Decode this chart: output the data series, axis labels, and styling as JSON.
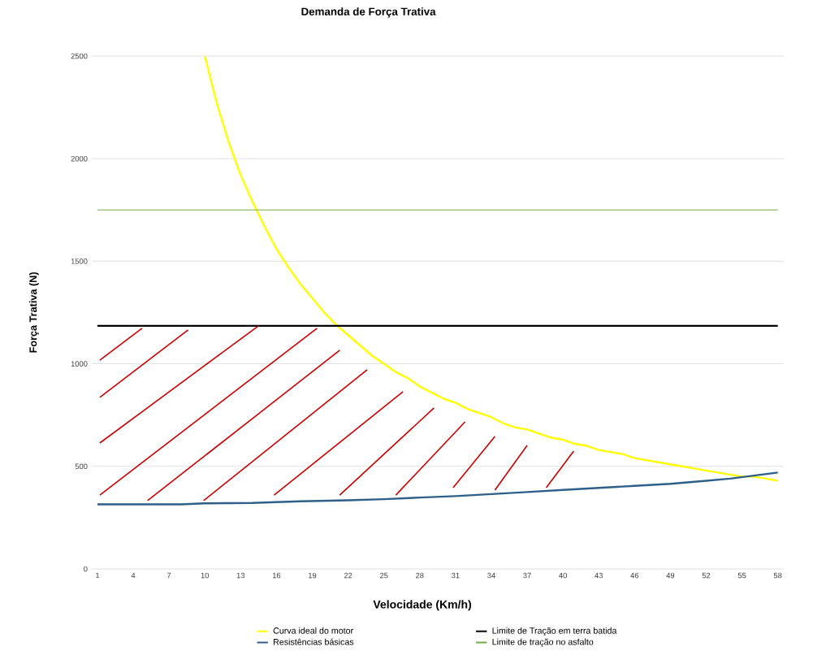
{
  "chart_data": {
    "type": "line",
    "title": "Demanda de Força Trativa",
    "xlabel": "Velocidade (Km/h)",
    "ylabel": "Força Trativa (N)",
    "xlim": [
      0.5,
      58.5
    ],
    "xticks": [
      1,
      4,
      7,
      10,
      13,
      16,
      19,
      22,
      25,
      28,
      31,
      34,
      37,
      40,
      43,
      46,
      49,
      52,
      55,
      58
    ],
    "ylim": [
      0,
      2500
    ],
    "yticks": [
      0,
      500,
      1000,
      1500,
      2000,
      2500
    ],
    "grid": "y",
    "legend": "bottom",
    "marker": "none",
    "line_style": "solid",
    "series": [
      {
        "name": "Curva ideal do motor",
        "color": "#ffff00",
        "x": [
          10,
          11,
          12,
          13,
          14,
          15,
          16,
          17,
          18,
          19,
          20,
          21,
          22,
          23,
          24,
          25,
          26,
          27,
          28,
          29,
          30,
          31,
          32,
          33,
          34,
          35,
          36,
          37,
          38,
          39,
          40,
          41,
          42,
          43,
          44,
          45,
          46,
          47,
          48,
          49,
          50,
          51,
          52,
          53,
          54,
          55,
          56,
          57,
          58
        ],
        "values": [
          2500,
          2270,
          2080,
          1920,
          1790,
          1670,
          1560,
          1470,
          1390,
          1320,
          1250,
          1190,
          1140,
          1090,
          1040,
          1000,
          960,
          930,
          890,
          860,
          830,
          810,
          780,
          760,
          740,
          710,
          690,
          680,
          660,
          640,
          630,
          610,
          600,
          580,
          570,
          560,
          540,
          530,
          520,
          510,
          500,
          490,
          480,
          470,
          460,
          450,
          450,
          440,
          430
        ]
      },
      {
        "name": "Limite de Tração em terra batida",
        "color": "#000000",
        "x": [
          1,
          58
        ],
        "values": [
          1185,
          1185
        ]
      },
      {
        "name": "Resistências básicas",
        "color": "#2e5f8a",
        "x": [
          1,
          8,
          10,
          14,
          18,
          22,
          25,
          28,
          31,
          34,
          37,
          40,
          43,
          46,
          49,
          52,
          54,
          56,
          58
        ],
        "values": [
          315,
          315,
          320,
          322,
          330,
          335,
          340,
          348,
          355,
          365,
          375,
          385,
          395,
          405,
          415,
          430,
          440,
          455,
          470
        ]
      },
      {
        "name": "Limite de tração no asfalto",
        "color": "#70ad47",
        "x": [
          1,
          58
        ],
        "values": [
          1750,
          1750
        ]
      }
    ]
  }
}
